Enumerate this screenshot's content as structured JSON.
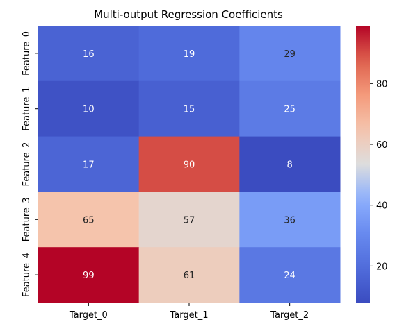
{
  "chart_data": {
    "type": "heatmap",
    "title": "Multi-output Regression Coefficients",
    "xlabel": "",
    "ylabel": "",
    "rows": [
      "Feature_0",
      "Feature_1",
      "Feature_2",
      "Feature_3",
      "Feature_4"
    ],
    "columns": [
      "Target_0",
      "Target_1",
      "Target_2"
    ],
    "values": [
      [
        16,
        19,
        29
      ],
      [
        10,
        15,
        25
      ],
      [
        17,
        90,
        8
      ],
      [
        65,
        57,
        36
      ],
      [
        99,
        61,
        24
      ]
    ],
    "colormap": "coolwarm",
    "vmin": 8,
    "vmax": 99,
    "colorbar_ticks": [
      20,
      40,
      60,
      80
    ],
    "colorbar_position": "right",
    "annotations": true,
    "grid": false
  }
}
